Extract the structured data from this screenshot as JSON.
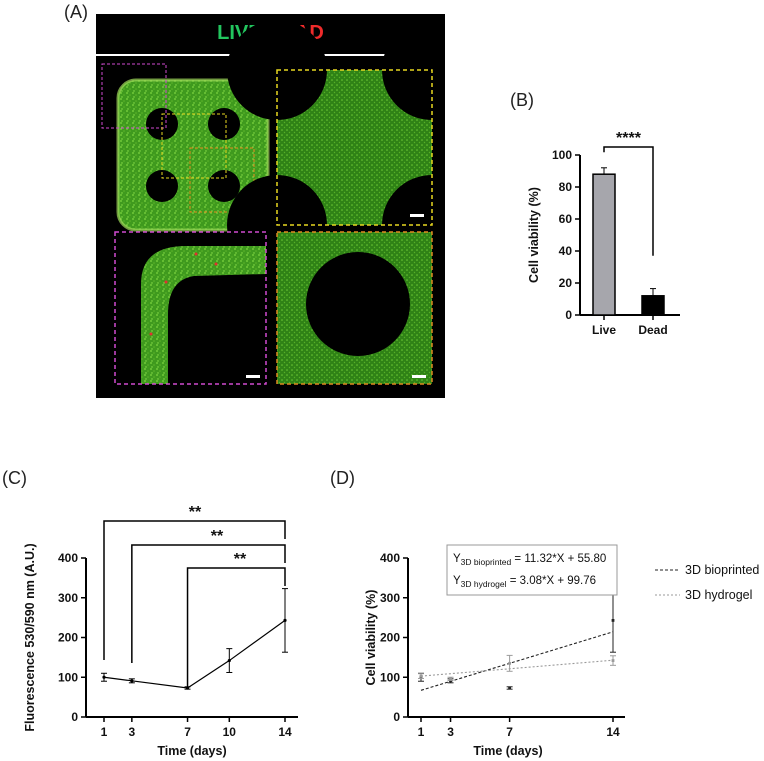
{
  "panel_labels": {
    "a": "(A)",
    "b": "(B)",
    "c": "(C)",
    "d": "(D)"
  },
  "micrograph": {
    "title_live": "LIVE",
    "title_dead": "DEAD",
    "live_color": "#22c55e",
    "dead_color": "#ef2b2b"
  },
  "chart_data": [
    {
      "id": "B",
      "type": "bar",
      "categories": [
        "Live",
        "Dead"
      ],
      "values": [
        88,
        12
      ],
      "errors": [
        4,
        4.5
      ],
      "colors": [
        "#a6a6ac",
        "#000000"
      ],
      "ylabel": "Cell viability (%)",
      "ylim": [
        0,
        100
      ],
      "yticks": [
        0,
        20,
        40,
        60,
        80,
        100
      ],
      "significance": [
        {
          "from": "Live",
          "to": "Dead",
          "label": "****"
        }
      ]
    },
    {
      "id": "C",
      "type": "line",
      "x": [
        1,
        3,
        7,
        10,
        14
      ],
      "xticks": [
        1,
        3,
        7,
        10,
        14
      ],
      "y": [
        100,
        91,
        73,
        142,
        243
      ],
      "errors": [
        10,
        5,
        3,
        30,
        80
      ],
      "xlabel": "Time (days)",
      "ylabel": "Fluorescence 530/590 nm (A.U.)",
      "ylim": [
        0,
        400
      ],
      "yticks": [
        0,
        100,
        200,
        300,
        400
      ],
      "significance": [
        {
          "from": 1,
          "to": 14,
          "label": "**"
        },
        {
          "from": 3,
          "to": 14,
          "label": "**"
        },
        {
          "from": 7,
          "to": 14,
          "label": "**"
        }
      ]
    },
    {
      "id": "D",
      "type": "scatter",
      "xlabel": "Time (days)",
      "ylabel": "Cell viability (%)",
      "xticks": [
        1,
        3,
        7,
        14
      ],
      "ylim": [
        0,
        400
      ],
      "yticks": [
        0,
        100,
        200,
        300,
        400
      ],
      "series": [
        {
          "name": "3D bioprinted",
          "color": "#222222",
          "x": [
            1,
            3,
            7,
            14
          ],
          "y": [
            100,
            91,
            73,
            243
          ],
          "errors": [
            10,
            5,
            3,
            80
          ],
          "fit": {
            "slope": 11.32,
            "intercept": 55.8
          }
        },
        {
          "name": "3D hydrogel",
          "color": "#9a9a9a",
          "x": [
            1,
            3,
            7,
            14
          ],
          "y": [
            103,
            96,
            135,
            142
          ],
          "errors": [
            6,
            4,
            20,
            12
          ],
          "fit": {
            "slope": 3.08,
            "intercept": 99.76
          }
        }
      ],
      "equations": [
        {
          "y": "Y",
          "sub": "3D bioprinted",
          "rhs": " = 11.32*X + 55.80"
        },
        {
          "y": "Y",
          "sub": "3D hydrogel",
          "rhs": " = 3.08*X + 99.76"
        }
      ]
    }
  ]
}
